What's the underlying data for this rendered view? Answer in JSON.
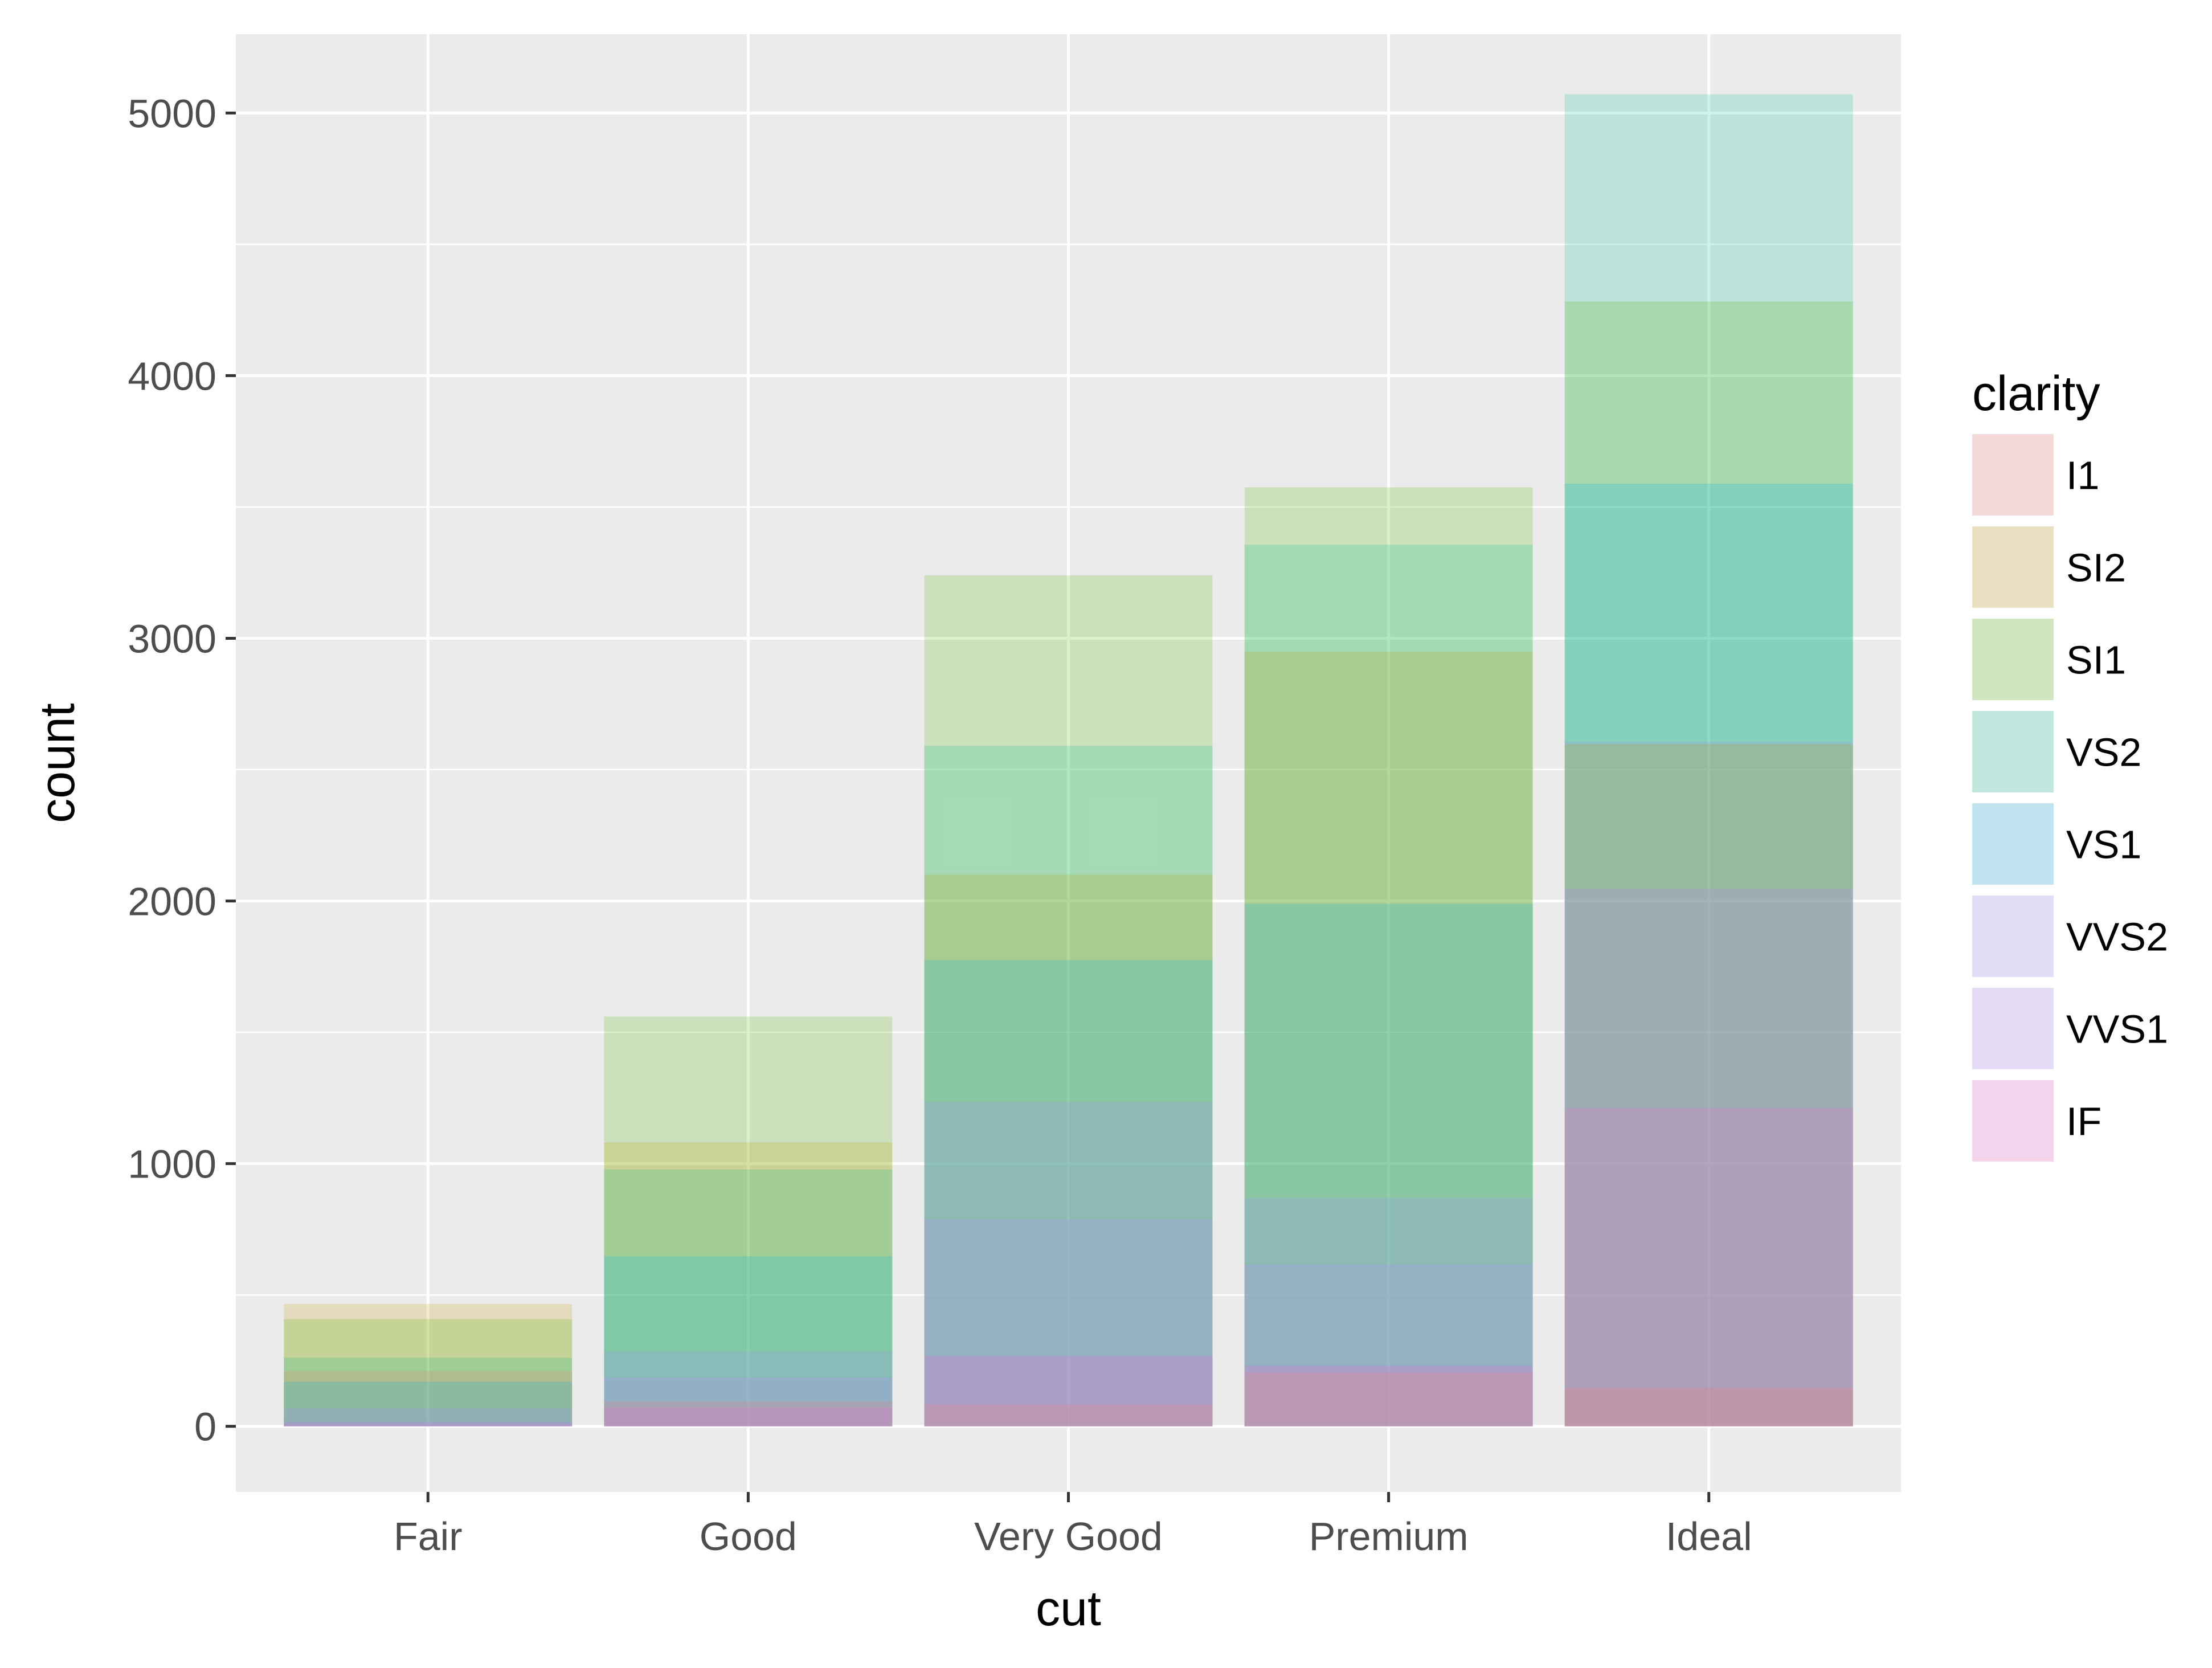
{
  "chart_data": {
    "type": "bar",
    "subtype": "overlapping (position identity), alpha-blended",
    "title": "",
    "xlabel": "cut",
    "ylabel": "count",
    "categories": [
      "Fair",
      "Good",
      "Very Good",
      "Premium",
      "Ideal"
    ],
    "ylim": [
      -250,
      5300
    ],
    "yticks": [
      0,
      1000,
      2000,
      3000,
      4000,
      5000
    ],
    "grid": true,
    "legend": {
      "title": "clarity",
      "placement": "right"
    },
    "series": [
      {
        "name": "I1",
        "color": "#F8766D",
        "values": [
          210,
          96,
          84,
          205,
          146
        ]
      },
      {
        "name": "SI2",
        "color": "#C49A00",
        "values": [
          466,
          1081,
          2100,
          2949,
          2598
        ]
      },
      {
        "name": "SI1",
        "color": "#53B400",
        "values": [
          408,
          1560,
          3240,
          3575,
          4282
        ]
      },
      {
        "name": "VS2",
        "color": "#00C094",
        "values": [
          261,
          978,
          2591,
          3357,
          5071
        ]
      },
      {
        "name": "VS1",
        "color": "#00B6EB",
        "values": [
          170,
          648,
          1775,
          1989,
          3589
        ]
      },
      {
        "name": "VVS2",
        "color": "#A58AFF",
        "values": [
          69,
          286,
          1235,
          870,
          2606
        ]
      },
      {
        "name": "VVS1",
        "color": "#B983FF",
        "values": [
          17,
          186,
          789,
          616,
          2047
        ]
      },
      {
        "name": "IF",
        "color": "#FB61D7",
        "values": [
          9,
          71,
          268,
          230,
          1212
        ]
      }
    ],
    "alpha": 0.2,
    "colors": {
      "panel": "#EBEBEB",
      "grid": "#FFFFFF",
      "axis_text": "#4D4D4D",
      "title_text": "#000000",
      "tick": "#333333"
    }
  }
}
